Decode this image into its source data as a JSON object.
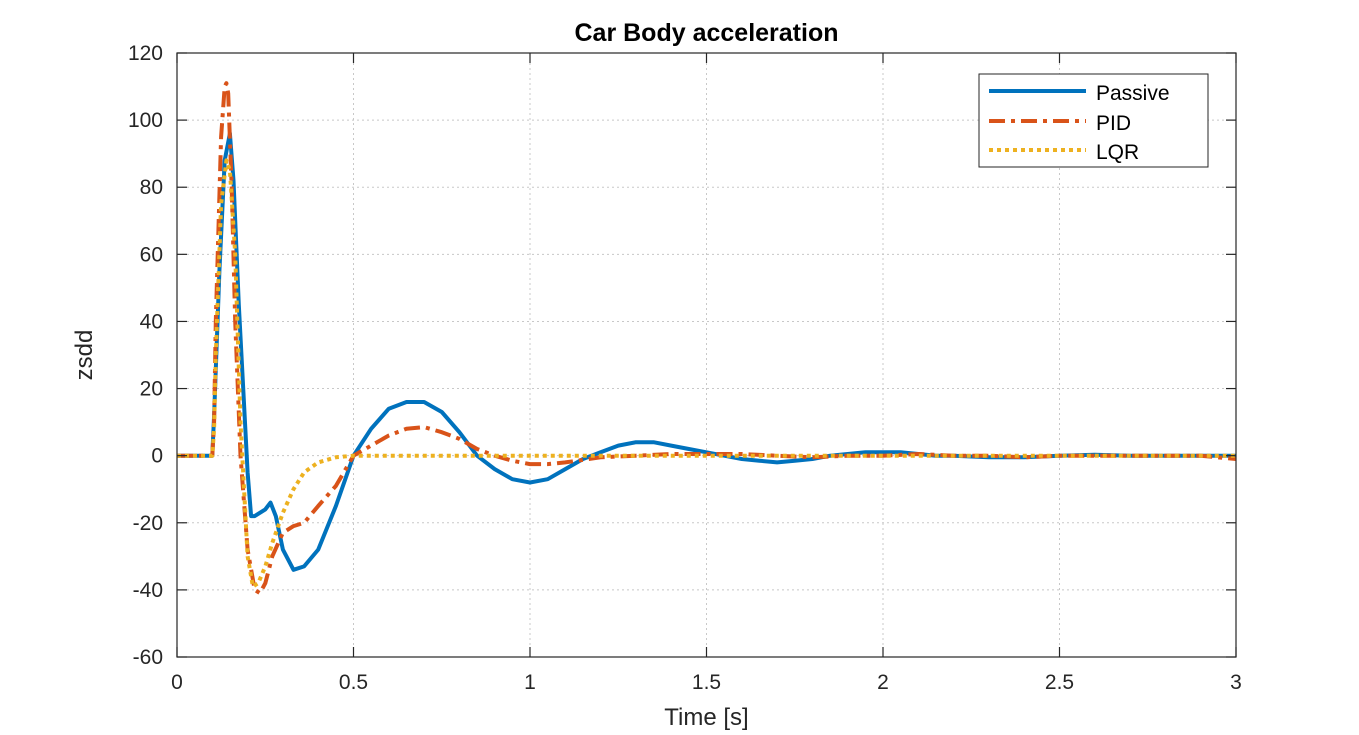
{
  "chart_data": {
    "type": "line",
    "title": "Car Body acceleration",
    "xlabel": "Time [s]",
    "ylabel": "zsdd",
    "xlim": [
      0,
      3
    ],
    "ylim": [
      -60,
      120
    ],
    "x_ticks": [
      0,
      0.5,
      1,
      1.5,
      2,
      2.5,
      3
    ],
    "x_tick_labels": [
      "0",
      "0.5",
      "1",
      "1.5",
      "2",
      "2.5",
      "3"
    ],
    "y_ticks": [
      -60,
      -40,
      -20,
      0,
      20,
      40,
      60,
      80,
      100,
      120
    ],
    "y_tick_labels": [
      "-60",
      "-40",
      "-20",
      "0",
      "20",
      "40",
      "60",
      "80",
      "100",
      "120"
    ],
    "grid": true,
    "legend_position": "top-right",
    "series": [
      {
        "name": "Passive",
        "color": "#0072BD",
        "style": "solid",
        "x": [
          0,
          0.1,
          0.105,
          0.12,
          0.135,
          0.15,
          0.16,
          0.175,
          0.19,
          0.2,
          0.21,
          0.22,
          0.25,
          0.265,
          0.28,
          0.3,
          0.33,
          0.36,
          0.4,
          0.45,
          0.5,
          0.55,
          0.6,
          0.65,
          0.7,
          0.75,
          0.8,
          0.85,
          0.9,
          0.95,
          1.0,
          1.05,
          1.1,
          1.15,
          1.2,
          1.25,
          1.3,
          1.35,
          1.4,
          1.45,
          1.5,
          1.55,
          1.6,
          1.65,
          1.7,
          1.75,
          1.8,
          1.85,
          1.9,
          1.95,
          2.0,
          2.05,
          2.1,
          2.15,
          2.2,
          2.3,
          2.4,
          2.5,
          2.6,
          2.7,
          2.8,
          2.9,
          3.0
        ],
        "y": [
          0,
          0,
          12,
          55,
          88,
          96,
          82,
          45,
          15,
          -5,
          -18,
          -18,
          -16,
          -14,
          -18,
          -28,
          -34,
          -33,
          -28,
          -15,
          0,
          8,
          14,
          16,
          16,
          13,
          7,
          0,
          -4,
          -7,
          -8,
          -7,
          -4,
          -1,
          1,
          3,
          4,
          4,
          3,
          2,
          1,
          0,
          -1,
          -1.5,
          -2,
          -1.5,
          -1,
          0,
          0.5,
          1,
          1,
          1,
          0.5,
          0,
          0,
          -0.5,
          -0.5,
          0,
          0.3,
          0,
          0,
          0,
          0
        ]
      },
      {
        "name": "PID",
        "color": "#D95319",
        "style": "dashdot",
        "x": [
          0,
          0.1,
          0.105,
          0.11,
          0.125,
          0.135,
          0.14,
          0.145,
          0.155,
          0.165,
          0.18,
          0.2,
          0.22,
          0.235,
          0.25,
          0.27,
          0.3,
          0.33,
          0.36,
          0.4,
          0.45,
          0.5,
          0.55,
          0.6,
          0.65,
          0.7,
          0.75,
          0.8,
          0.85,
          0.9,
          0.95,
          1.0,
          1.05,
          1.1,
          1.2,
          1.3,
          1.4,
          1.5,
          1.6,
          1.7,
          1.8,
          1.9,
          2.0,
          2.1,
          2.2,
          2.3,
          2.4,
          2.5,
          2.6,
          2.7,
          2.8,
          2.9,
          3.0
        ],
        "y": [
          0,
          0,
          10,
          40,
          95,
          110,
          111,
          108,
          80,
          40,
          0,
          -28,
          -40,
          -41,
          -38,
          -30,
          -23,
          -21,
          -20,
          -15,
          -9,
          0,
          3,
          6,
          8,
          8.5,
          7,
          5,
          2,
          0,
          -1.5,
          -2.5,
          -2.5,
          -2,
          -0.5,
          0,
          0.5,
          0.5,
          0.5,
          0,
          -0.5,
          0,
          0,
          0.5,
          0,
          0,
          -0.5,
          0,
          0,
          0,
          0,
          0,
          -1
        ]
      },
      {
        "name": "LQR",
        "color": "#EDB120",
        "style": "dotted",
        "x": [
          0,
          0.1,
          0.105,
          0.11,
          0.125,
          0.14,
          0.15,
          0.165,
          0.18,
          0.2,
          0.215,
          0.23,
          0.25,
          0.27,
          0.3,
          0.33,
          0.36,
          0.4,
          0.45,
          0.5,
          0.55,
          0.6,
          0.7,
          0.8,
          0.9,
          1.0,
          1.5,
          2.0,
          2.5,
          3.0
        ],
        "y": [
          0,
          0,
          8,
          30,
          75,
          88,
          85,
          60,
          10,
          -30,
          -39,
          -38,
          -33,
          -26,
          -17,
          -10,
          -5,
          -2,
          -0.5,
          0,
          0,
          0,
          0,
          0,
          0,
          0,
          0,
          0,
          0,
          0
        ]
      }
    ]
  }
}
